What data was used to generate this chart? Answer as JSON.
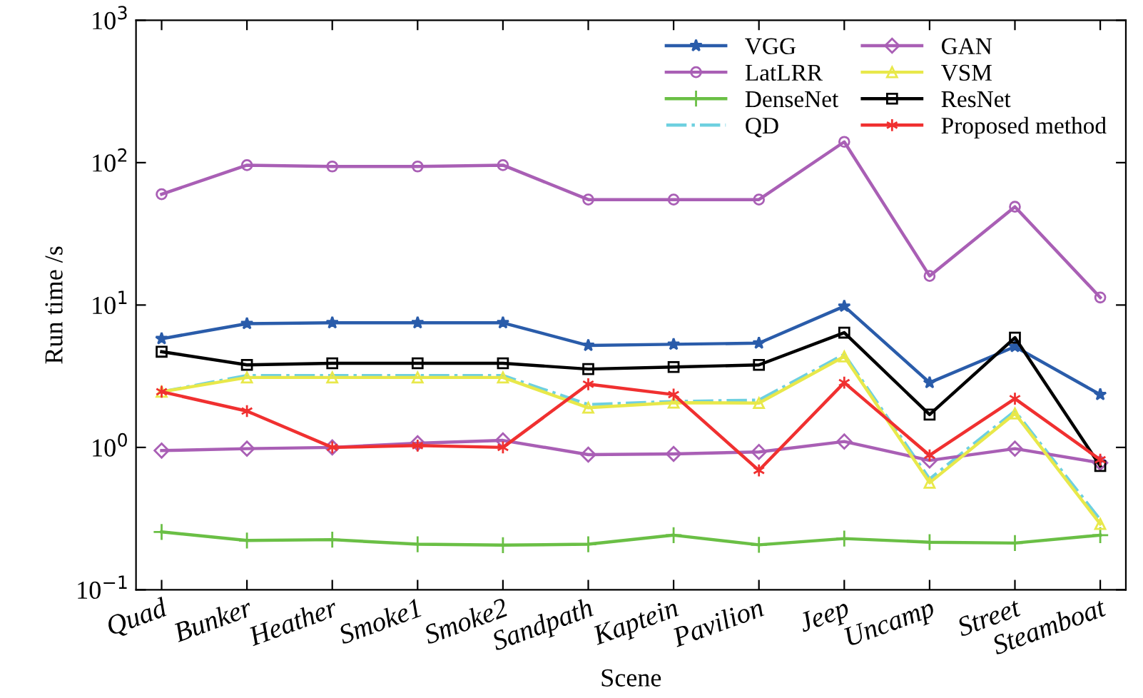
{
  "chart_data": {
    "type": "line",
    "xlabel": "Scene",
    "ylabel": "Run time /s",
    "categories": [
      "Quad",
      "Bunker",
      "Heather",
      "Smoke1",
      "Smoke2",
      "Sandpath",
      "Kaptein",
      "Pavilion",
      "Jeep",
      "Uncamp",
      "Street",
      "Steamboat"
    ],
    "log": "y",
    "ylim": [
      0.1,
      1000
    ],
    "yticks": [
      {
        "value": 0.1,
        "label": "10$^{−1}$"
      },
      {
        "value": 1,
        "label": "10$^{0}$"
      },
      {
        "value": 10,
        "label": "10$^{1}$"
      },
      {
        "value": 100,
        "label": "10$^{2}$"
      },
      {
        "value": 1000,
        "label": "10$^{3}$"
      }
    ],
    "grid": false,
    "legend": "top right",
    "series": [
      {
        "name": "VGG",
        "color": "#2a5caa",
        "marker": "star",
        "line_style": "solid",
        "values": [
          5.8,
          7.4,
          7.5,
          7.5,
          7.5,
          5.2,
          5.3,
          5.4,
          9.8,
          2.85,
          5.1,
          2.35
        ]
      },
      {
        "name": "LatLRR",
        "color": "#a95fb5",
        "marker": "circle",
        "line_style": "solid",
        "values": [
          60,
          96,
          94,
          94,
          96,
          55,
          55,
          55,
          140,
          16,
          49,
          11.3
        ]
      },
      {
        "name": "DenseNet",
        "color": "#6abf45",
        "marker": "plus",
        "line_style": "solid",
        "values": [
          0.255,
          0.222,
          0.225,
          0.209,
          0.206,
          0.209,
          0.242,
          0.207,
          0.229,
          0.216,
          0.213,
          0.242
        ]
      },
      {
        "name": "QD",
        "color": "#6ed0e0",
        "marker": "none",
        "line_style": "dashdot",
        "values": [
          2.46,
          3.2,
          3.2,
          3.2,
          3.2,
          2.0,
          2.1,
          2.15,
          4.5,
          0.6,
          1.8,
          0.31
        ]
      },
      {
        "name": "GAN",
        "color": "#a95fb5",
        "marker": "diamond",
        "line_style": "solid",
        "values": [
          0.95,
          0.98,
          1.0,
          1.07,
          1.12,
          0.89,
          0.9,
          0.93,
          1.1,
          0.81,
          0.98,
          0.78
        ]
      },
      {
        "name": "VSM",
        "color": "#e8e84a",
        "marker": "triangle",
        "line_style": "solid",
        "values": [
          2.46,
          3.1,
          3.1,
          3.1,
          3.1,
          1.9,
          2.06,
          2.05,
          4.35,
          0.565,
          1.73,
          0.29
        ]
      },
      {
        "name": "ResNet",
        "color": "#000000",
        "marker": "square",
        "line_style": "solid",
        "values": [
          4.7,
          3.8,
          3.9,
          3.9,
          3.9,
          3.55,
          3.67,
          3.8,
          6.4,
          1.7,
          5.9,
          0.74
        ]
      },
      {
        "name": "Proposed method",
        "color": "#f03030",
        "marker": "cross",
        "line_style": "solid",
        "values": [
          2.46,
          1.8,
          1.0,
          1.03,
          1.0,
          2.78,
          2.35,
          0.69,
          2.85,
          0.88,
          2.2,
          0.82
        ]
      }
    ]
  }
}
